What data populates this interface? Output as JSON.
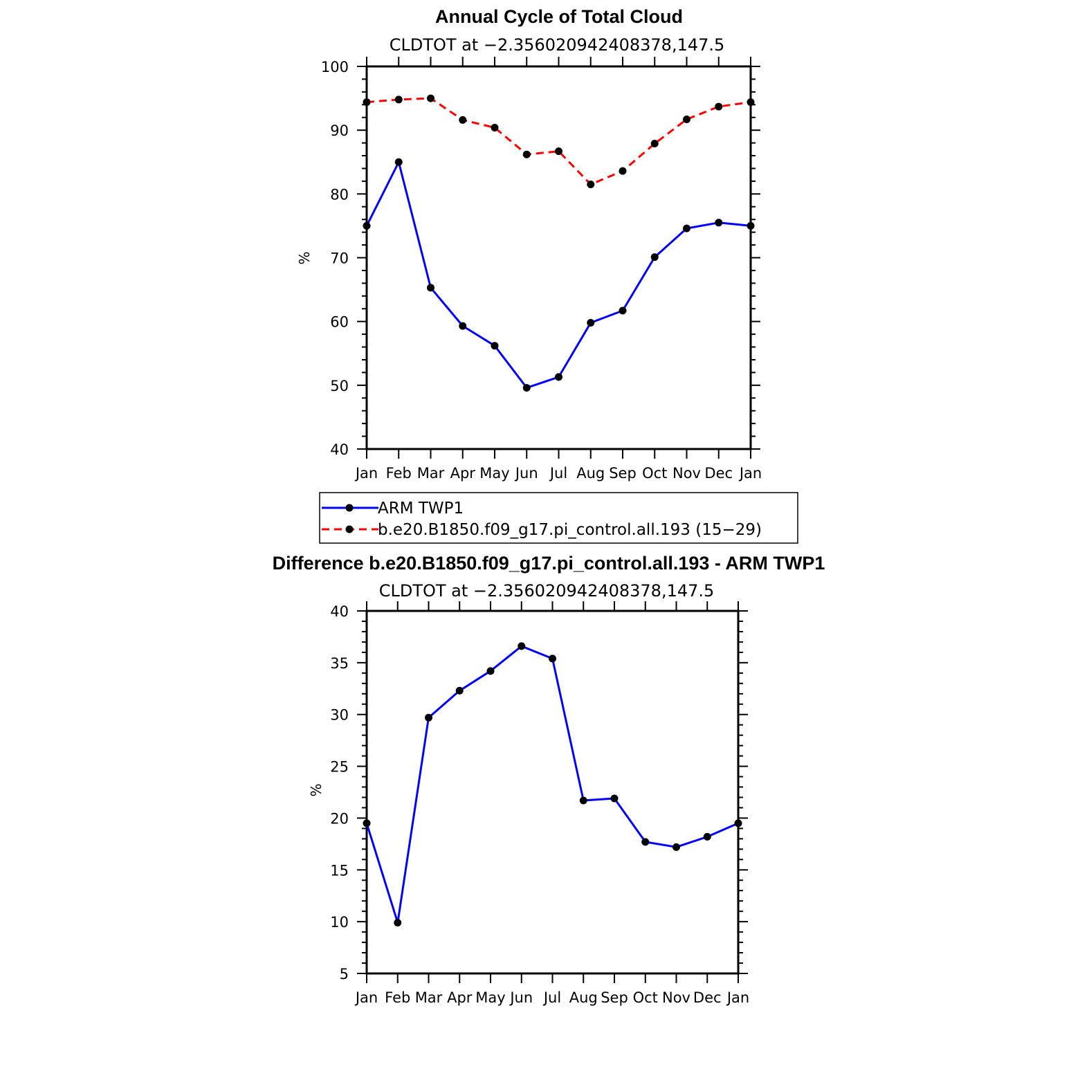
{
  "chart_data": [
    {
      "type": "line",
      "title": "Annual Cycle of Total Cloud",
      "subtitle": "CLDTOT at −2.356020942408378,147.5",
      "ylabel": "%",
      "ylim": [
        40,
        100
      ],
      "yticks": [
        40,
        50,
        60,
        70,
        80,
        90,
        100
      ],
      "categories": [
        "Jan",
        "Feb",
        "Mar",
        "Apr",
        "May",
        "Jun",
        "Jul",
        "Aug",
        "Sep",
        "Oct",
        "Nov",
        "Dec",
        "Jan"
      ],
      "grid": false,
      "legend_position": "bottom",
      "series": [
        {
          "name": "ARM TWP1",
          "color": "#0000ff",
          "dash": "solid",
          "marker": "filled-circle",
          "values": [
            75.0,
            85.0,
            65.3,
            59.3,
            56.2,
            49.6,
            51.3,
            59.8,
            61.7,
            70.1,
            74.6,
            75.5,
            75.0
          ]
        },
        {
          "name": "b.e20.B1850.f09_g17.pi_control.all.193 (15−29)",
          "color": "#ff0000",
          "dash": "dashed",
          "marker": "filled-circle",
          "values": [
            94.4,
            94.8,
            95.0,
            91.6,
            90.4,
            86.2,
            86.7,
            81.5,
            83.6,
            87.9,
            91.7,
            93.7,
            94.4
          ]
        }
      ]
    },
    {
      "type": "line",
      "title": "Difference b.e20.B1850.f09_g17.pi_control.all.193 - ARM TWP1",
      "subtitle": "CLDTOT at −2.356020942408378,147.5",
      "ylabel": "%",
      "ylim": [
        5,
        40
      ],
      "yticks": [
        5,
        10,
        15,
        20,
        25,
        30,
        35,
        40
      ],
      "categories": [
        "Jan",
        "Feb",
        "Mar",
        "Apr",
        "May",
        "Jun",
        "Jul",
        "Aug",
        "Sep",
        "Oct",
        "Nov",
        "Dec",
        "Jan"
      ],
      "grid": false,
      "series": [
        {
          "color": "#0000ff",
          "dash": "solid",
          "marker": "filled-circle",
          "values": [
            19.5,
            9.9,
            29.7,
            32.3,
            34.2,
            36.6,
            35.4,
            21.7,
            21.9,
            17.7,
            17.2,
            18.2,
            19.5
          ]
        }
      ]
    }
  ]
}
